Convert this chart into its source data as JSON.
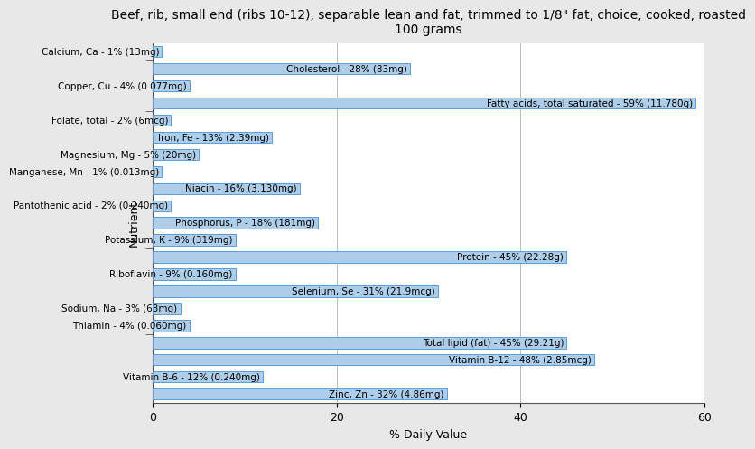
{
  "title": "Beef, rib, small end (ribs 10-12), separable lean and fat, trimmed to 1/8\" fat, choice, cooked, roasted\n100 grams",
  "xlabel": "% Daily Value",
  "ylabel": "Nutrient",
  "xlim": [
    0,
    60
  ],
  "xticks": [
    0,
    20,
    40,
    60
  ],
  "bar_color": "#aecde8",
  "bar_edge_color": "#5b9bd5",
  "background_color": "#e8e8e8",
  "plot_background": "#ffffff",
  "nutrients": [
    {
      "label": "Calcium, Ca - 1% (13mg)",
      "value": 1
    },
    {
      "label": "Cholesterol - 28% (83mg)",
      "value": 28
    },
    {
      "label": "Copper, Cu - 4% (0.077mg)",
      "value": 4
    },
    {
      "label": "Fatty acids, total saturated - 59% (11.780g)",
      "value": 59
    },
    {
      "label": "Folate, total - 2% (6mcg)",
      "value": 2
    },
    {
      "label": "Iron, Fe - 13% (2.39mg)",
      "value": 13
    },
    {
      "label": "Magnesium, Mg - 5% (20mg)",
      "value": 5
    },
    {
      "label": "Manganese, Mn - 1% (0.013mg)",
      "value": 1
    },
    {
      "label": "Niacin - 16% (3.130mg)",
      "value": 16
    },
    {
      "label": "Pantothenic acid - 2% (0.240mg)",
      "value": 2
    },
    {
      "label": "Phosphorus, P - 18% (181mg)",
      "value": 18
    },
    {
      "label": "Potassium, K - 9% (319mg)",
      "value": 9
    },
    {
      "label": "Protein - 45% (22.28g)",
      "value": 45
    },
    {
      "label": "Riboflavin - 9% (0.160mg)",
      "value": 9
    },
    {
      "label": "Selenium, Se - 31% (21.9mcg)",
      "value": 31
    },
    {
      "label": "Sodium, Na - 3% (63mg)",
      "value": 3
    },
    {
      "label": "Thiamin - 4% (0.060mg)",
      "value": 4
    },
    {
      "label": "Total lipid (fat) - 45% (29.21g)",
      "value": 45
    },
    {
      "label": "Vitamin B-12 - 48% (2.85mcg)",
      "value": 48
    },
    {
      "label": "Vitamin B-6 - 12% (0.240mg)",
      "value": 12
    },
    {
      "label": "Zinc, Zn - 32% (4.86mg)",
      "value": 32
    }
  ],
  "ytick_group_positions": [
    3.5,
    8.5,
    16.5,
    19.5
  ],
  "title_fontsize": 10,
  "axis_label_fontsize": 9,
  "tick_fontsize": 9,
  "bar_label_fontsize": 7.5
}
